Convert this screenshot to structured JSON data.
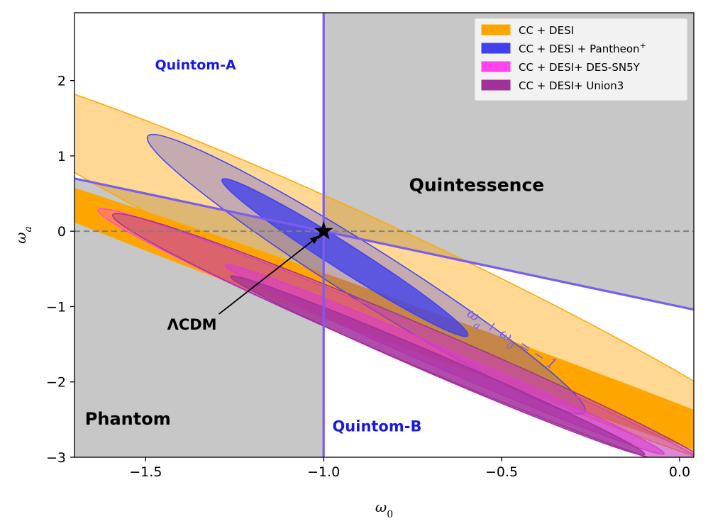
{
  "chart_data": {
    "type": "contour",
    "xlabel_symbol": "ω",
    "xlabel_sub": "0",
    "ylabel_symbol": "ω",
    "ylabel_sub": "a",
    "xlim": [
      -1.7,
      0.04
    ],
    "ylim": [
      -3.0,
      2.9
    ],
    "x_ticks": [
      -1.5,
      -1.0,
      -0.5,
      0.0
    ],
    "x_tick_labels": [
      "−1.5",
      "−1.0",
      "−0.5",
      "0.0"
    ],
    "y_ticks": [
      -3,
      -2,
      -1,
      0,
      1,
      2
    ],
    "y_tick_labels": [
      "−3",
      "−2",
      "−1",
      "0",
      "1",
      "2"
    ],
    "colors": {
      "region_shade": "#c7c7c7",
      "boundary_line": "#7b5cf0",
      "zero_line": "#808080",
      "cc_desi": "#ffa500",
      "pantheon": "#4040ee",
      "dessn5y": "#ff44ee",
      "union3": "#a0309a"
    },
    "regions": [
      {
        "name": "Quintom-A",
        "label": "Quintom-A",
        "x": -1.36,
        "y": 2.2,
        "color": "#1a1adf",
        "size": 19
      },
      {
        "name": "Quintessence",
        "label": "Quintessence",
        "x": -0.57,
        "y": 0.6,
        "color": "#000000",
        "size": 25
      },
      {
        "name": "Phantom",
        "label": "Phantom",
        "x": -1.55,
        "y": -2.5,
        "color": "#000000",
        "size": 24
      },
      {
        "name": "Quintom-B",
        "label": "Quintom-B",
        "x": -0.85,
        "y": -2.6,
        "color": "#1a1adf",
        "size": 21
      }
    ],
    "boundary_line_label": {
      "prefix": "ω",
      "sub1": "a",
      "mid": " + ω",
      "sub2": "0",
      "suffix": " = − 1",
      "x": -0.6,
      "y": -1.12,
      "angle_deg": 32
    },
    "lcdm": {
      "label": "ΛCDM",
      "point": [
        -1.0,
        0.0
      ],
      "label_pos": [
        -1.37,
        -1.25
      ]
    },
    "series": [
      {
        "name": "cc-desi",
        "color": "#ffa500",
        "contours": [
          {
            "level": "2sigma",
            "cx": -0.85,
            "cy": -0.55,
            "a": 3.05,
            "b": 0.29,
            "angle": -66.5,
            "opacity": 0.42
          },
          {
            "level": "1sigma",
            "cx": -0.71,
            "cy": -1.35,
            "a": 2.95,
            "b": 0.15,
            "angle": -60,
            "opacity": 1.0
          }
        ]
      },
      {
        "name": "pantheon",
        "color": "#4040ee",
        "contours": [
          {
            "level": "2sigma",
            "cx": -0.88,
            "cy": -0.57,
            "a": 1.95,
            "b": 0.132,
            "angle": -72,
            "opacity": 0.3
          },
          {
            "level": "1sigma",
            "cx": -0.94,
            "cy": -0.35,
            "a": 1.1,
            "b": 0.065,
            "angle": -72,
            "opacity": 0.78
          }
        ]
      },
      {
        "name": "dessn5y",
        "color": "#ff44ee",
        "contours": [
          {
            "level": "2sigma",
            "cx": -0.75,
            "cy": -1.5,
            "a": 2.0,
            "b": 0.12,
            "angle": -64,
            "opacity": 0.33
          },
          {
            "level": "1sigma",
            "cx": -0.66,
            "cy": -1.7,
            "a": 1.4,
            "b": 0.065,
            "angle": -64,
            "opacity": 0.6
          }
        ]
      },
      {
        "name": "union3",
        "color": "#a0309a",
        "contours": [
          {
            "level": "2sigma",
            "cx": -0.73,
            "cy": -1.52,
            "a": 1.95,
            "b": 0.13,
            "angle": -64,
            "opacity": 0.38
          },
          {
            "level": "1sigma",
            "cx": -0.68,
            "cy": -1.78,
            "a": 1.32,
            "b": 0.065,
            "angle": -64,
            "opacity": 0.7
          }
        ]
      }
    ],
    "legend": {
      "placement": "top-right",
      "entries": [
        {
          "name": "cc-desi",
          "label": "CC + DESI",
          "color": "#ffa500",
          "sup": ""
        },
        {
          "name": "pantheon",
          "label": "CC + DESI + Pantheon",
          "color": "#4040ee",
          "sup": "+"
        },
        {
          "name": "dessn5y",
          "label": "CC + DESI+ DES-SN5Y",
          "color": "#ff44ee",
          "sup": ""
        },
        {
          "name": "union3",
          "label": "CC + DESI+ Union3",
          "color": "#a0309a",
          "sup": ""
        }
      ]
    }
  }
}
